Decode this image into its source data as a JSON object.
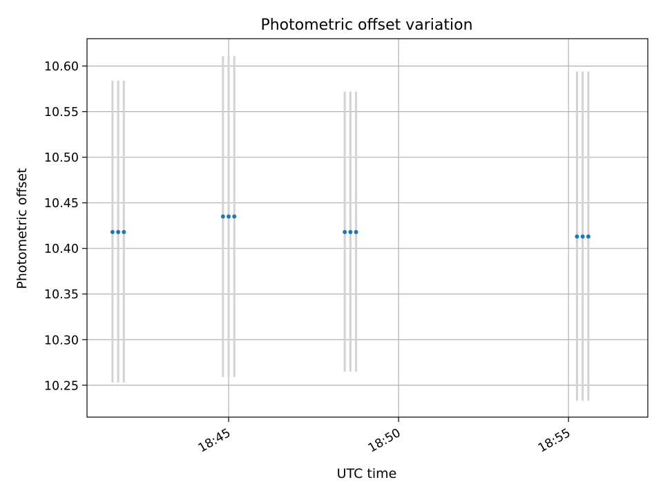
{
  "chart_data": {
    "type": "scatter",
    "title": "Photometric offset variation",
    "xlabel": "UTC time",
    "ylabel": "Photometric offset",
    "xlim": [
      "18:40:50",
      "18:57:20"
    ],
    "ylim": [
      10.215,
      10.63
    ],
    "x_ticks": [
      "18:45",
      "18:50",
      "18:55"
    ],
    "y_ticks": [
      10.25,
      10.3,
      10.35,
      10.4,
      10.45,
      10.5,
      10.55,
      10.6
    ],
    "grid": true,
    "series": [
      {
        "marker": "point",
        "error_bar_style": "vertical",
        "points": [
          {
            "x": "18:41:35",
            "y": 10.418,
            "ylow": 10.253,
            "yhigh": 10.584
          },
          {
            "x": "18:41:45",
            "y": 10.418,
            "ylow": 10.253,
            "yhigh": 10.584
          },
          {
            "x": "18:41:55",
            "y": 10.418,
            "ylow": 10.253,
            "yhigh": 10.584
          },
          {
            "x": "18:44:50",
            "y": 10.435,
            "ylow": 10.259,
            "yhigh": 10.611
          },
          {
            "x": "18:45:00",
            "y": 10.435,
            "ylow": 10.259,
            "yhigh": 10.611
          },
          {
            "x": "18:45:10",
            "y": 10.435,
            "ylow": 10.259,
            "yhigh": 10.611
          },
          {
            "x": "18:48:25",
            "y": 10.418,
            "ylow": 10.265,
            "yhigh": 10.572
          },
          {
            "x": "18:48:35",
            "y": 10.418,
            "ylow": 10.265,
            "yhigh": 10.572
          },
          {
            "x": "18:48:45",
            "y": 10.418,
            "ylow": 10.265,
            "yhigh": 10.572
          },
          {
            "x": "18:55:15",
            "y": 10.413,
            "ylow": 10.233,
            "yhigh": 10.594
          },
          {
            "x": "18:55:25",
            "y": 10.413,
            "ylow": 10.233,
            "yhigh": 10.594
          },
          {
            "x": "18:55:35",
            "y": 10.413,
            "ylow": 10.233,
            "yhigh": 10.594
          }
        ]
      }
    ],
    "colors": {
      "point": "#1f77b4",
      "error_bar": "#d3d3d3",
      "grid": "#b0b0b0",
      "axis": "#000000"
    }
  }
}
